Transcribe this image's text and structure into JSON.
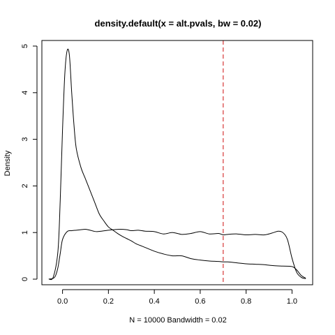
{
  "chart_data": {
    "type": "line",
    "title": "density.default(x = alt.pvals, bw = 0.02)",
    "xlabel": "N = 10000   Bandwidth = 0.02",
    "ylabel": "Density",
    "xlim": [
      -0.09,
      1.09
    ],
    "ylim": [
      -0.12,
      5.12
    ],
    "x_ticks": [
      0.0,
      0.2,
      0.4,
      0.6,
      0.8,
      1.0
    ],
    "x_tick_labels": [
      "0.0",
      "0.2",
      "0.4",
      "0.6",
      "0.8",
      "1.0"
    ],
    "y_ticks": [
      0,
      1,
      2,
      3,
      4,
      5
    ],
    "y_tick_labels": [
      "0",
      "1",
      "2",
      "3",
      "4",
      "5"
    ],
    "grid": false,
    "reference_line": {
      "x": 0.7,
      "color": "#e06666",
      "style": "dashed"
    },
    "series": [
      {
        "color": "#000000",
        "x": [
          -0.06,
          -0.04,
          -0.02,
          -0.01,
          0.0,
          0.01,
          0.02,
          0.03,
          0.04,
          0.05,
          0.06,
          0.08,
          0.1,
          0.12,
          0.14,
          0.16,
          0.18,
          0.2,
          0.22,
          0.24,
          0.26,
          0.28,
          0.3,
          0.32,
          0.34,
          0.36,
          0.4,
          0.44,
          0.48,
          0.52,
          0.56,
          0.6,
          0.64,
          0.68,
          0.7,
          0.72,
          0.76,
          0.8,
          0.84,
          0.88,
          0.92,
          0.96,
          1.0,
          1.02,
          1.04,
          1.06
        ],
        "y": [
          0.0,
          0.05,
          0.6,
          1.7,
          3.2,
          4.4,
          4.9,
          4.8,
          4.0,
          3.3,
          2.8,
          2.4,
          2.15,
          1.9,
          1.65,
          1.4,
          1.25,
          1.12,
          1.05,
          0.98,
          0.92,
          0.87,
          0.82,
          0.76,
          0.72,
          0.68,
          0.6,
          0.54,
          0.5,
          0.5,
          0.44,
          0.41,
          0.39,
          0.38,
          0.37,
          0.37,
          0.35,
          0.33,
          0.32,
          0.31,
          0.29,
          0.28,
          0.27,
          0.2,
          0.08,
          0.02
        ]
      },
      {
        "color": "#000000",
        "x": [
          -0.06,
          -0.04,
          -0.03,
          -0.02,
          -0.01,
          0.0,
          0.02,
          0.04,
          0.06,
          0.08,
          0.1,
          0.12,
          0.15,
          0.2,
          0.25,
          0.28,
          0.3,
          0.33,
          0.36,
          0.4,
          0.44,
          0.48,
          0.52,
          0.56,
          0.6,
          0.64,
          0.68,
          0.7,
          0.72,
          0.76,
          0.8,
          0.84,
          0.88,
          0.92,
          0.94,
          0.96,
          0.98,
          1.0,
          1.02,
          1.04,
          1.06
        ],
        "y": [
          0.0,
          0.02,
          0.08,
          0.25,
          0.55,
          0.85,
          1.02,
          1.04,
          1.05,
          1.06,
          1.07,
          1.05,
          1.02,
          1.05,
          1.07,
          1.06,
          1.04,
          1.05,
          1.03,
          1.02,
          0.97,
          1.0,
          0.96,
          0.98,
          1.02,
          0.97,
          0.98,
          0.95,
          0.96,
          0.97,
          0.95,
          0.96,
          0.95,
          1.0,
          1.03,
          1.0,
          0.85,
          0.45,
          0.15,
          0.04,
          0.01
        ]
      }
    ]
  }
}
